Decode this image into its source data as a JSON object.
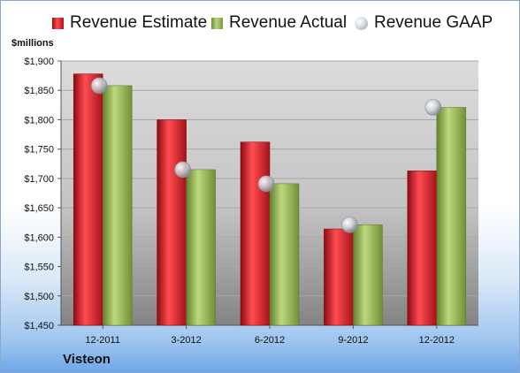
{
  "chart_data": {
    "type": "bar",
    "unit_label": "$millions",
    "company": "Visteon",
    "categories": [
      "12-2011",
      "3-2012",
      "6-2012",
      "9-2012",
      "12-2012"
    ],
    "series": [
      {
        "name": "Revenue Estimate",
        "kind": "bar",
        "color": "#d21a22",
        "values": [
          1878,
          1800,
          1762,
          1614,
          1713
        ]
      },
      {
        "name": "Revenue Actual",
        "kind": "bar",
        "color": "#8fb04a",
        "values": [
          1858,
          1715,
          1691,
          1621,
          1821
        ]
      },
      {
        "name": "Revenue GAAP",
        "kind": "marker",
        "color": "#b8bec6",
        "values": [
          1858,
          1715,
          1691,
          1621,
          1821
        ]
      }
    ],
    "ylim": [
      1450,
      1900
    ],
    "yticks": [
      "$1,450",
      "$1,500",
      "$1,550",
      "$1,600",
      "$1,650",
      "$1,700",
      "$1,750",
      "$1,800",
      "$1,850",
      "$1,900"
    ],
    "grid": true,
    "legend_position": "top"
  }
}
